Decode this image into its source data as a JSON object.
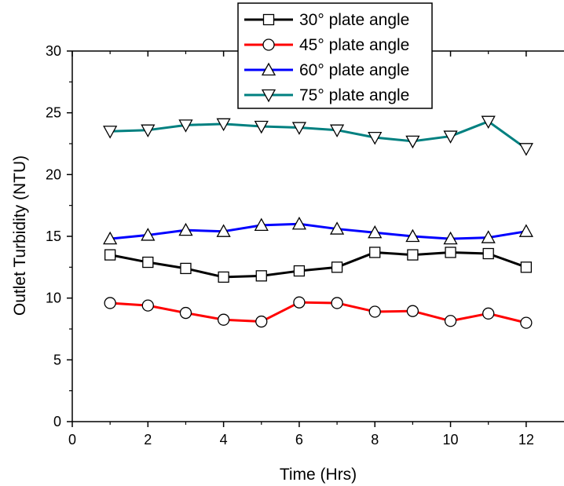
{
  "chart_data": {
    "type": "line",
    "title": "",
    "xlabel": "Time (Hrs)",
    "ylabel": "Outlet Turbidity (NTU)",
    "xlim": [
      0,
      13
    ],
    "ylim": [
      0,
      30
    ],
    "xticks": [
      0,
      2,
      4,
      6,
      8,
      10,
      12
    ],
    "yticks": [
      0,
      5,
      10,
      15,
      20,
      25,
      30
    ],
    "grid": false,
    "legend_position": "top-right",
    "x": [
      1,
      2,
      3,
      4,
      5,
      6,
      7,
      8,
      9,
      10,
      11,
      12
    ],
    "series": [
      {
        "name": "30° plate angle",
        "color": "#000000",
        "marker": "square",
        "values": [
          13.5,
          12.9,
          12.4,
          11.7,
          11.8,
          12.2,
          12.5,
          13.7,
          13.5,
          13.7,
          13.6,
          12.5
        ]
      },
      {
        "name": "45° plate angle",
        "color": "#ff0000",
        "marker": "circle",
        "values": [
          9.6,
          9.4,
          8.8,
          8.25,
          8.1,
          9.65,
          9.6,
          8.9,
          8.95,
          8.15,
          8.75,
          8.0
        ]
      },
      {
        "name": "60° plate angle",
        "color": "#0000ff",
        "marker": "triangle-up",
        "values": [
          14.8,
          15.1,
          15.5,
          15.4,
          15.9,
          16.0,
          15.6,
          15.3,
          15.0,
          14.8,
          14.9,
          15.4
        ]
      },
      {
        "name": "75° plate angle",
        "color": "#008080",
        "marker": "triangle-down",
        "values": [
          23.5,
          23.6,
          24.0,
          24.1,
          23.9,
          23.8,
          23.6,
          23.0,
          22.7,
          23.1,
          24.3,
          22.1
        ]
      }
    ]
  }
}
